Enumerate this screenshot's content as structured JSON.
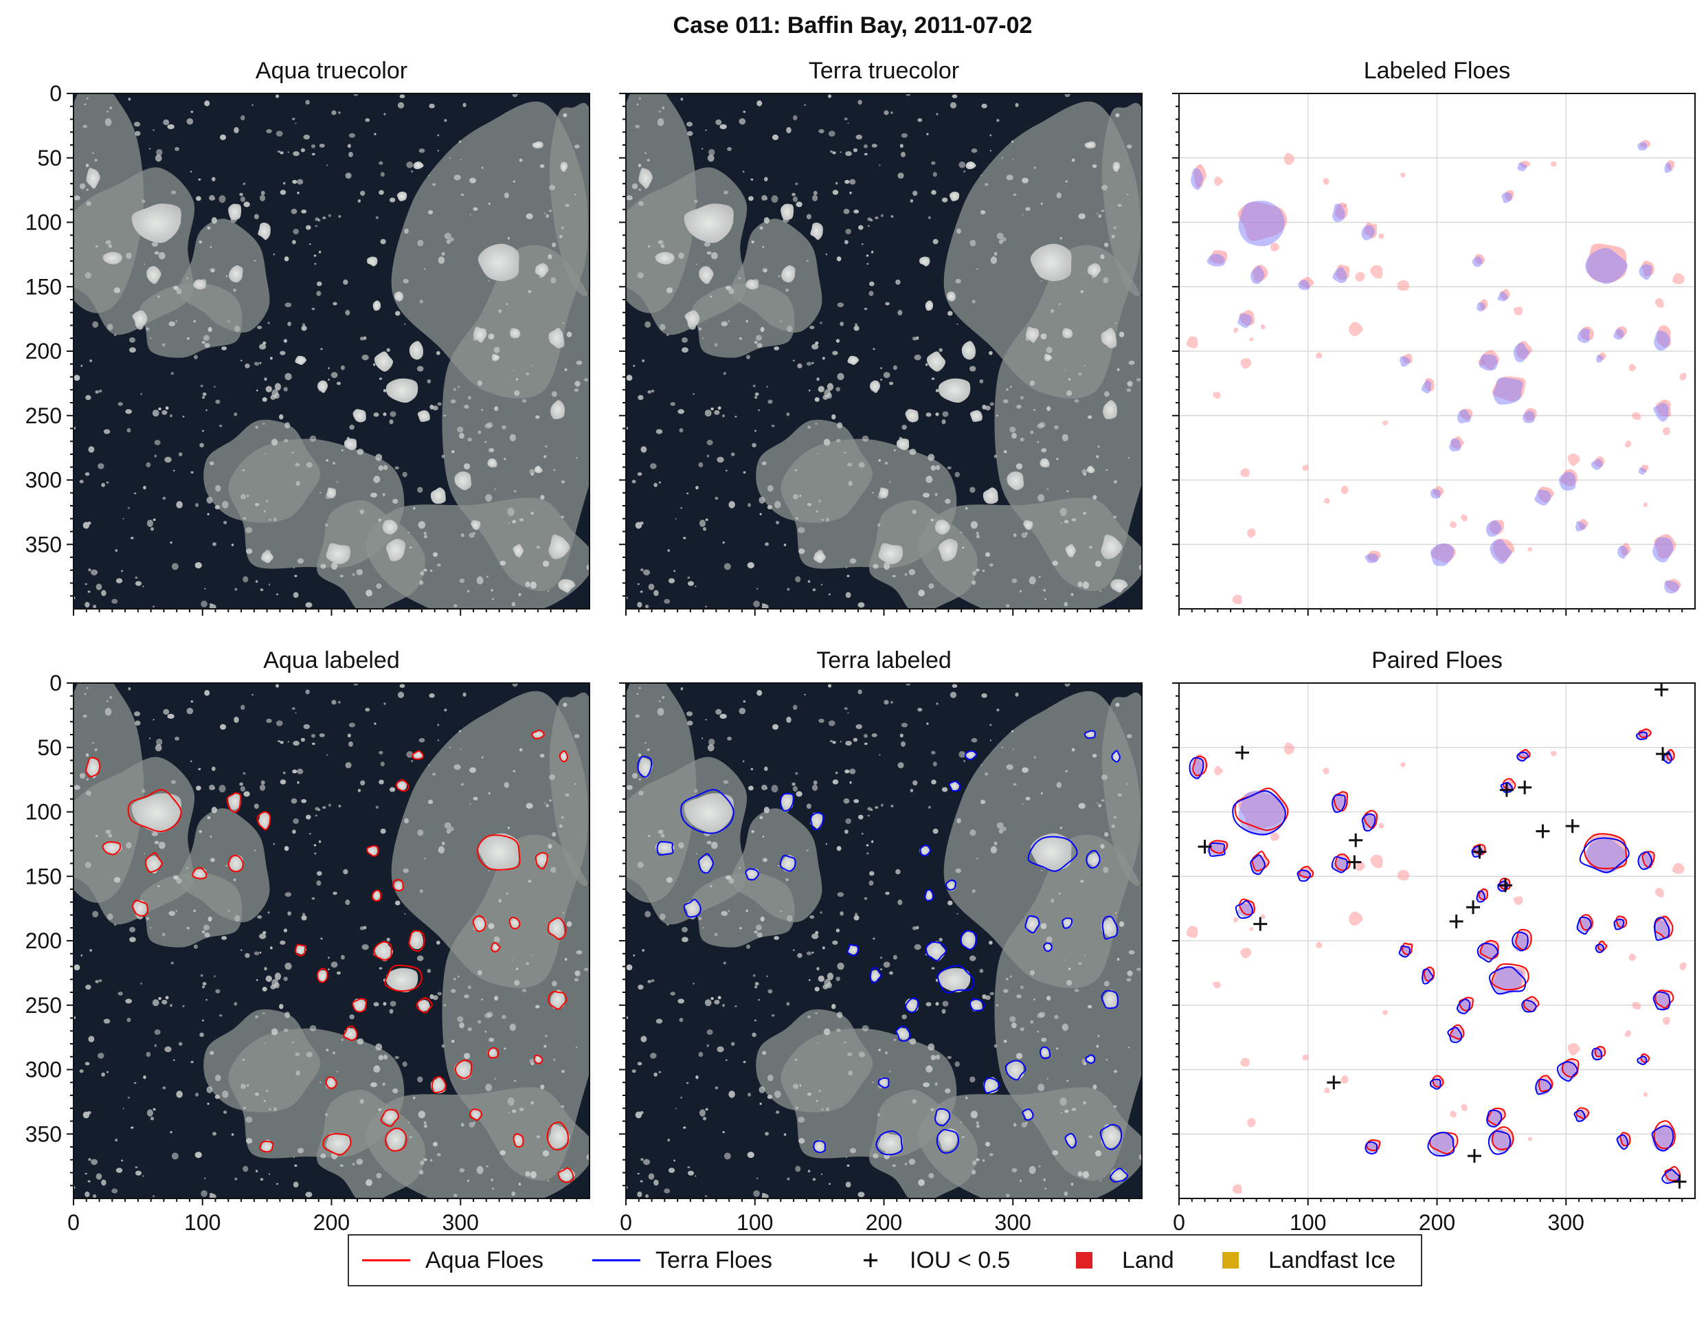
{
  "figure": {
    "title": "Case 011: Baffin Bay, 2011-07-02"
  },
  "chart_data": {
    "type": "image",
    "panels": [
      {
        "title": "Aqua truecolor",
        "kind": "truecolor",
        "row": 0,
        "col": 0
      },
      {
        "title": "Terra truecolor",
        "kind": "truecolor",
        "row": 0,
        "col": 1
      },
      {
        "title": "Labeled Floes",
        "kind": "labeled",
        "row": 0,
        "col": 2
      },
      {
        "title": "Aqua labeled",
        "kind": "outline-aqua",
        "row": 1,
        "col": 0
      },
      {
        "title": "Terra labeled",
        "kind": "outline-terra",
        "row": 1,
        "col": 1
      },
      {
        "title": "Paired Floes",
        "kind": "paired",
        "row": 1,
        "col": 2
      }
    ],
    "xlim": [
      0,
      400
    ],
    "ylim": [
      400,
      0
    ],
    "x_ticks": [
      0,
      100,
      200,
      300
    ],
    "y_ticks": [
      0,
      50,
      100,
      150,
      200,
      250,
      300,
      350
    ],
    "grid": true,
    "legend_position": "bottom",
    "legend": [
      {
        "label": "Aqua Floes",
        "marker": "line",
        "color": "#ff0000"
      },
      {
        "label": "Terra Floes",
        "marker": "line",
        "color": "#0000ff"
      },
      {
        "label": "IOU < 0.5",
        "marker": "plus",
        "color": "#000000"
      },
      {
        "label": "Land",
        "marker": "square",
        "color": "#e02020"
      },
      {
        "label": "Landfast Ice",
        "marker": "square",
        "color": "#d9a90f"
      }
    ],
    "floes": [
      [
        65,
        100,
        20,
        16
      ],
      [
        330,
        132,
        17,
        14
      ],
      [
        15,
        65,
        5,
        8
      ],
      [
        125,
        92,
        5,
        7
      ],
      [
        148,
        107,
        5,
        6
      ],
      [
        126,
        140,
        6,
        6
      ],
      [
        62,
        140,
        6,
        7
      ],
      [
        30,
        128,
        7,
        5
      ],
      [
        52,
        175,
        6,
        6
      ],
      [
        98,
        148,
        5,
        4
      ],
      [
        256,
        230,
        13,
        10
      ],
      [
        240,
        208,
        7,
        7
      ],
      [
        266,
        200,
        6,
        7
      ],
      [
        302,
        300,
        7,
        7
      ],
      [
        205,
        357,
        10,
        8
      ],
      [
        250,
        355,
        8,
        9
      ],
      [
        376,
        352,
        8,
        10
      ],
      [
        382,
        382,
        6,
        5
      ],
      [
        375,
        190,
        6,
        8
      ],
      [
        375,
        246,
        6,
        7
      ],
      [
        363,
        137,
        5,
        6
      ],
      [
        315,
        187,
        5,
        6
      ],
      [
        342,
        186,
        4,
        4
      ],
      [
        252,
        157,
        4,
        4
      ],
      [
        232,
        130,
        4,
        4
      ],
      [
        255,
        80,
        4,
        4
      ],
      [
        193,
        227,
        4,
        5
      ],
      [
        215,
        272,
        5,
        5
      ],
      [
        245,
        337,
        6,
        6
      ],
      [
        222,
        250,
        5,
        5
      ],
      [
        272,
        250,
        5,
        5
      ],
      [
        176,
        207,
        4,
        4
      ],
      [
        312,
        335,
        4,
        4
      ],
      [
        325,
        287,
        4,
        4
      ],
      [
        360,
        292,
        3,
        3
      ],
      [
        150,
        360,
        5,
        4
      ],
      [
        283,
        312,
        6,
        6
      ],
      [
        360,
        40,
        4,
        3
      ],
      [
        380,
        57,
        3,
        4
      ],
      [
        267,
        56,
        4,
        3
      ],
      [
        327,
        205,
        3,
        3
      ],
      [
        235,
        165,
        3,
        4
      ],
      [
        200,
        310,
        4,
        4
      ],
      [
        345,
        355,
        4,
        5
      ]
    ],
    "iou_markers": [
      [
        49,
        54
      ],
      [
        20,
        127
      ],
      [
        63,
        187
      ],
      [
        136,
        139
      ],
      [
        137,
        122
      ],
      [
        120,
        310
      ],
      [
        254,
        83
      ],
      [
        268,
        81
      ],
      [
        282,
        115
      ],
      [
        305,
        111
      ],
      [
        233,
        131
      ],
      [
        253,
        157
      ],
      [
        228,
        174
      ],
      [
        215,
        185
      ],
      [
        229,
        367
      ],
      [
        374,
        5
      ],
      [
        375,
        55
      ],
      [
        388,
        387
      ]
    ]
  }
}
